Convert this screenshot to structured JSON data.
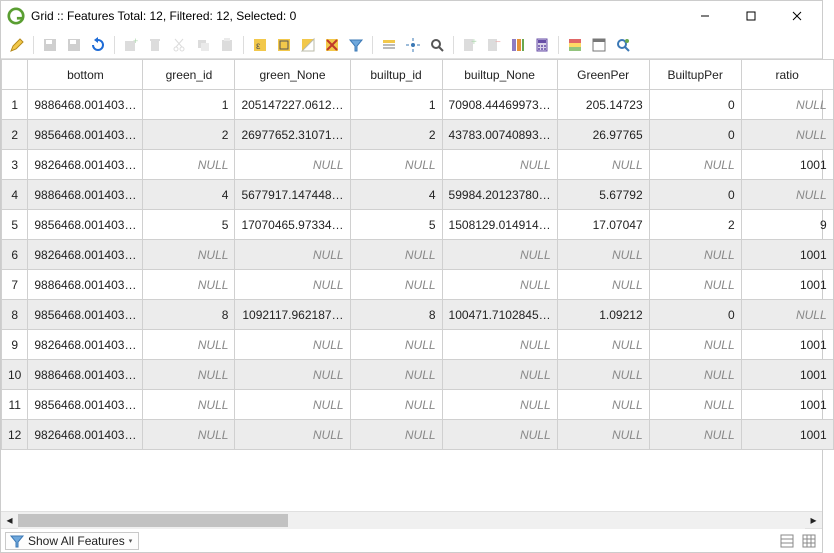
{
  "window": {
    "title": "Grid :: Features Total: 12, Filtered: 12, Selected: 0"
  },
  "statusbar": {
    "show_all_label": "Show All Features"
  },
  "columns": [
    {
      "name": "bottom",
      "width": 112
    },
    {
      "name": "green_id",
      "width": 92
    },
    {
      "name": "green_None",
      "width": 112
    },
    {
      "name": "builtup_id",
      "width": 92
    },
    {
      "name": "builtup_None",
      "width": 112
    },
    {
      "name": "GreenPer",
      "width": 92
    },
    {
      "name": "BuiltupPer",
      "width": 92
    },
    {
      "name": "ratio",
      "width": 92
    }
  ],
  "null_label": "NULL",
  "rows": [
    [
      "9886468.001403…",
      "1",
      "205147227.0612…",
      "1",
      "70908.44469973…",
      "205.14723",
      "0",
      null
    ],
    [
      "9856468.001403…",
      "2",
      "26977652.31071…",
      "2",
      "43783.00740893…",
      "26.97765",
      "0",
      null
    ],
    [
      "9826468.001403…",
      null,
      null,
      null,
      null,
      null,
      null,
      "1001"
    ],
    [
      "9886468.001403…",
      "4",
      "5677917.147448…",
      "4",
      "59984.20123780…",
      "5.67792",
      "0",
      null
    ],
    [
      "9856468.001403…",
      "5",
      "17070465.97334…",
      "5",
      "1508129.014914…",
      "17.07047",
      "2",
      "9"
    ],
    [
      "9826468.001403…",
      null,
      null,
      null,
      null,
      null,
      null,
      "1001"
    ],
    [
      "9886468.001403…",
      null,
      null,
      null,
      null,
      null,
      null,
      "1001"
    ],
    [
      "9856468.001403…",
      "8",
      "1092117.962187…",
      "8",
      "100471.7102845…",
      "1.09212",
      "0",
      null
    ],
    [
      "9826468.001403…",
      null,
      null,
      null,
      null,
      null,
      null,
      "1001"
    ],
    [
      "9886468.001403…",
      null,
      null,
      null,
      null,
      null,
      null,
      "1001"
    ],
    [
      "9856468.001403…",
      null,
      null,
      null,
      null,
      null,
      null,
      "1001"
    ],
    [
      "9826468.001403…",
      null,
      null,
      null,
      null,
      null,
      null,
      "1001"
    ]
  ],
  "toolbar_icons": [
    "pencil",
    "sep",
    "save-dis",
    "save-alt-dis",
    "refresh",
    "sep",
    "add-feature-dis",
    "delete-dis",
    "cut-dis",
    "copy-dis",
    "paste-dis",
    "sep",
    "expr-select",
    "select-all",
    "invert-select",
    "deselect",
    "filter-funnel",
    "sep",
    "move-top",
    "pan-to",
    "zoom-to",
    "sep",
    "new-column-dis",
    "delete-column-dis",
    "rename-column",
    "calculator",
    "sep",
    "conditional-format",
    "dock",
    "actions"
  ],
  "colors": {
    "alt_row": "#ececec",
    "grid_border": "#d0d0d0",
    "null_text": "#888888",
    "app_green": "#5a9e32",
    "refresh_blue": "#1e6bd6",
    "funnel_blue": "#6fa8dc",
    "select_yellow": "#f2c84b"
  }
}
